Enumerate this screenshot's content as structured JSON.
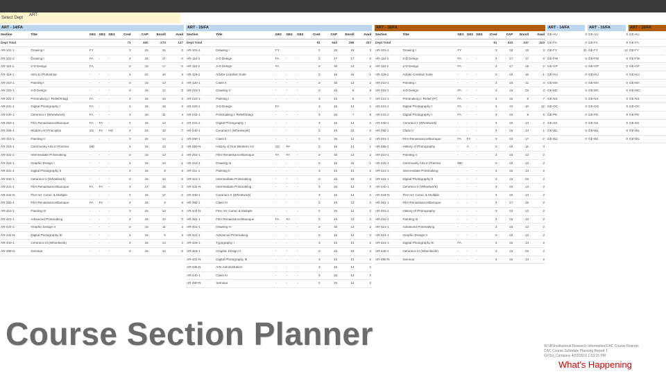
{
  "selector": {
    "label": "Select Dept",
    "value": "ART"
  },
  "columns_full": [
    "Section",
    "Title",
    "GE1",
    "GE2",
    "GE3",
    "Cred",
    "CAP",
    "Enroll",
    "Avail"
  ],
  "columns_small": [
    "",
    ""
  ],
  "panels": [
    {
      "header": "ART - 14/FA",
      "color": "#bdd7ee",
      "total": [
        "Dept Total",
        "",
        "",
        "",
        "",
        "71",
        "400",
        "273",
        "127"
      ],
      "rows": [
        [
          "AR-101-1",
          "Drawing I",
          "FY",
          "",
          "",
          "3",
          "15",
          "15",
          "0"
        ],
        [
          "AR-101-2",
          "Drawing I",
          "FA",
          "-",
          "-",
          "3",
          "15",
          "17",
          "-2"
        ],
        [
          "AR-110-1",
          "2-D Design",
          "FA",
          "",
          "",
          "3",
          "15",
          "17",
          "-2"
        ],
        [
          "AR-119-1",
          "Intro to Photoshop",
          "-",
          "-",
          "-",
          "3",
          "22",
          "16",
          "6"
        ],
        [
          "AR-210-1",
          "Painting I",
          "-",
          "-",
          "-",
          "3",
          "15",
          "13",
          "2"
        ],
        [
          "AR-220-1",
          "3-D Design",
          "-",
          "-",
          "-",
          "3",
          "15",
          "12",
          "3"
        ],
        [
          "AR-222-1",
          "Printmaking I: Relief/Intagl",
          "FA",
          "-",
          "-",
          "3",
          "15",
          "15",
          "0"
        ],
        [
          "AR-231-1",
          "Digital Photography I",
          "FA",
          "-",
          "-",
          "3",
          "15",
          "15",
          "0"
        ],
        [
          "AR-240-1",
          "Ceramics I (Wheelwork)",
          "FA",
          "-",
          "-",
          "3",
          "15",
          "11",
          "4"
        ],
        [
          "AR-250-1",
          "Film Renaissance/Baroque",
          "FA",
          "FA",
          "-",
          "3",
          "15",
          "13",
          "2"
        ],
        [
          "AR-265-1",
          "Modern Art Principles",
          "SS",
          "FA",
          "HU",
          "3",
          "22",
          "15",
          "7"
        ],
        [
          "AR-310-1",
          "Painting II",
          "-",
          "-",
          "-",
          "3",
          "15",
          "14",
          "1"
        ],
        [
          "AR-315-1",
          "Community Arts in Practice",
          "MD",
          "",
          "",
          "3",
          "15",
          "13",
          "2"
        ],
        [
          "AR-321-1",
          "Intermediate Printmaking",
          "-",
          "-",
          "-",
          "3",
          "15",
          "13",
          "2"
        ],
        [
          "AR-324-1",
          "Graphic Design I",
          "-",
          "-",
          "-",
          "3",
          "15",
          "14",
          "1"
        ],
        [
          "AR-331-1",
          "Digital Photography II",
          "-",
          "-",
          "-",
          "3",
          "15",
          "9",
          "6"
        ],
        [
          "AR-340-1",
          "Ceramics II (Wheelwork)",
          "-",
          "-",
          "-",
          "3",
          "15",
          "13",
          "2"
        ],
        [
          "AR-341-1",
          "Film Renaissance/Baroque",
          "FA",
          "FA",
          "-",
          "3",
          "17",
          "15",
          "2"
        ],
        [
          "AR-344-N",
          "Flex Art: Comic & Multiple",
          "-",
          "-",
          "-",
          "3",
          "15",
          "17",
          "-2"
        ],
        [
          "AR-360-1",
          "Film Renaissance/Baroque",
          "FA",
          "FA",
          "-",
          "3",
          "15",
          "9",
          "6"
        ],
        [
          "AR-410-1",
          "Painting III",
          "-",
          "-",
          "-",
          "3",
          "15",
          "13",
          "2"
        ],
        [
          "AR-421-1",
          "Advanced Printmaking",
          "-",
          "-",
          "-",
          "3",
          "15",
          "13",
          "2"
        ],
        [
          "AR-424-1",
          "Graphic Design II",
          "-",
          "-",
          "-",
          "3",
          "15",
          "11",
          "4"
        ],
        [
          "AR-431-N",
          "Digital Photography III",
          "-",
          "-",
          "-",
          "3",
          "15",
          "9",
          "6"
        ],
        [
          "AR-440-1",
          "Ceramics III (Wheelwork)",
          "-",
          "-",
          "-",
          "3",
          "15",
          "13",
          "2"
        ],
        [
          "AR-480-N",
          "Seminar",
          "-",
          "-",
          "-",
          "3",
          "15",
          "13",
          "2"
        ]
      ]
    },
    {
      "header": "ART - 15/FA",
      "color": "#bdd7ee",
      "total": [
        "Dept Total",
        "",
        "",
        "",
        "",
        "91",
        "540",
        "296",
        "207"
      ],
      "rows": [
        [
          "AR-101-1",
          "Drawing I",
          "FY",
          "",
          "",
          "3",
          "18",
          "15",
          "3"
        ],
        [
          "AR-110-1",
          "2-D Design",
          "FA",
          "-",
          "-",
          "3",
          "17",
          "17",
          "0"
        ],
        [
          "AR-110-2",
          "2-D Design",
          "FA",
          "",
          "",
          "3",
          "15",
          "13",
          "2"
        ],
        [
          "AR-119-1",
          "Adobe Creative Suite",
          "-",
          "-",
          "-",
          "3",
          "15",
          "16",
          "-1"
        ],
        [
          "AR-120-1",
          "Class II",
          "-",
          "-",
          "-",
          "3",
          "15",
          "13",
          "2"
        ],
        [
          "AR-210-1",
          "Drawing II",
          "-",
          "-",
          "-",
          "3",
          "15",
          "6",
          "9"
        ],
        [
          "AR-210-1",
          "Painting I",
          "-",
          "-",
          "-",
          "3",
          "15",
          "8",
          "7"
        ],
        [
          "AR-220-1",
          "3-D Design",
          "FA",
          "",
          "",
          "3",
          "15",
          "13",
          "2"
        ],
        [
          "AR-222-1",
          "Printmaking I: Relief/Intagl",
          "-",
          "-",
          "-",
          "3",
          "15",
          "7",
          "8"
        ],
        [
          "AR-231-1",
          "Digital Photography I",
          "-",
          "-",
          "-",
          "3",
          "15",
          "13",
          "2"
        ],
        [
          "AR-240-1",
          "Ceramics I (Wheelwork)",
          "-",
          "-",
          "-",
          "3",
          "15",
          "15",
          "0"
        ],
        [
          "AR-250-1",
          "Class II",
          "-",
          "-",
          "-",
          "3",
          "15",
          "13",
          "2"
        ],
        [
          "AR-250-N",
          "History of Non-Western Art",
          "SS",
          "FA",
          "",
          "3",
          "15",
          "14",
          "1"
        ],
        [
          "AR-261-1",
          "Film Renaissance/Baroque",
          "FA",
          "FA",
          "-",
          "3",
          "15",
          "13",
          "2"
        ],
        [
          "AR-310-1",
          "Drawing III",
          "-",
          "-",
          "-",
          "3",
          "15",
          "16",
          "-1"
        ],
        [
          "AR-311-1",
          "Painting II",
          "-",
          "-",
          "-",
          "3",
          "15",
          "13",
          "2"
        ],
        [
          "AR-321-1",
          "Intermediate Printmaking",
          "-",
          "-",
          "-",
          "3",
          "15",
          "13",
          "2"
        ],
        [
          "AR-331-N",
          "Intermediate Printmaking",
          "-",
          "-",
          "-",
          "3",
          "15",
          "13",
          "2"
        ],
        [
          "AR-340-1",
          "Ceramics II (Wheelwork)",
          "-",
          "-",
          "-",
          "3",
          "15",
          "13",
          "2"
        ],
        [
          "AR-350-1",
          "Class III",
          "-",
          "-",
          "-",
          "3",
          "15",
          "13",
          "2"
        ],
        [
          "AR-344-N",
          "Flex Art: Comic & Multiple",
          "-",
          "-",
          "-",
          "3",
          "15",
          "13",
          "2"
        ],
        [
          "AR-361-1",
          "Film Renaissance/Baroque",
          "FA",
          "FA",
          "-",
          "3",
          "15",
          "13",
          "2"
        ],
        [
          "AR-401-1",
          "Drawing IV",
          "-",
          "-",
          "-",
          "3",
          "15",
          "13",
          "2"
        ],
        [
          "AR-421-1",
          "Advanced Printmaking",
          "-",
          "-",
          "-",
          "3",
          "15",
          "13",
          "2"
        ],
        [
          "AR-425-1",
          "Typography I",
          "-",
          "-",
          "-",
          "3",
          "15",
          "13",
          "2"
        ],
        [
          "AR-424-1",
          "Graphic Design II",
          "-",
          "-",
          "-",
          "3",
          "15",
          "13",
          "2"
        ],
        [
          "AR-431-N",
          "Digital Photography III",
          "-",
          "-",
          "-",
          "3",
          "15",
          "13",
          "2"
        ],
        [
          "AR-435-N",
          "Arts Administration",
          "-",
          "-",
          "-",
          "3",
          "15",
          "13",
          "2"
        ],
        [
          "AR-440-1",
          "Class IV",
          "-",
          "-",
          "-",
          "3",
          "15",
          "13",
          "2"
        ],
        [
          "AR-480-N",
          "Seminar",
          "-",
          "-",
          "-",
          "3",
          "15",
          "13",
          "2"
        ]
      ]
    },
    {
      "header": "ART - 16/FA",
      "color": "#b25c0c",
      "total": [
        "Dept Total",
        "",
        "",
        "",
        "",
        "91",
        "510",
        "247",
        "223"
      ],
      "rows": [
        [
          "AR-101-1",
          "Drawing I",
          "FY",
          "",
          "",
          "3",
          "18",
          "15",
          "3"
        ],
        [
          "AR-110-1",
          "2-D Design",
          "FA",
          "-",
          "-",
          "3",
          "17",
          "17",
          "0"
        ],
        [
          "AR-110-2",
          "2-D Design",
          "FA",
          "",
          "",
          "3",
          "17",
          "15",
          "2"
        ],
        [
          "AR-119-1",
          "Adobe Creative Suite",
          "-",
          "-",
          "-",
          "3",
          "15",
          "16",
          "-1"
        ],
        [
          "AR-210-1",
          "Painting I",
          "-",
          "-",
          "-",
          "3",
          "15",
          "11",
          "4"
        ],
        [
          "AR-220-1",
          "3-D Design",
          "FA",
          "-",
          "-",
          "3",
          "15",
          "13",
          "2"
        ],
        [
          "AR-221-1",
          "Printmaking I: Relief (Pr)",
          "FA",
          "-",
          "-",
          "3",
          "15",
          "8",
          "7"
        ],
        [
          "AR-231-1",
          "Digital Photography I",
          "FA",
          "-",
          "-",
          "3",
          "22",
          "10",
          "12"
        ],
        [
          "AR-231-2",
          "Digital Photography I",
          "FA",
          "-",
          "-",
          "3",
          "15",
          "9",
          "6"
        ],
        [
          "AR-240-1",
          "Ceramics I (Wheelwork)",
          "-",
          "-",
          "-",
          "3",
          "15",
          "13",
          "2"
        ],
        [
          "AR-250-1",
          "Class II",
          "-",
          "-",
          "-",
          "3",
          "15",
          "14",
          "1"
        ],
        [
          "AR-251-1",
          "Film Renaissance/Baroque",
          "FA",
          "FA",
          "-",
          "3",
          "15",
          "17",
          "-2"
        ],
        [
          "AR-255-1",
          "History of Photography",
          "-",
          "A",
          "-",
          "3",
          "15",
          "11",
          "4"
        ],
        [
          "AR-310-1",
          "Painting II",
          "-",
          "-",
          "-",
          "3",
          "15",
          "13",
          "2"
        ],
        [
          "AR-315-1",
          "Community Arts in Practice",
          "MD",
          "",
          "",
          "3",
          "15",
          "13",
          "2"
        ],
        [
          "AR-321-1",
          "Intermediate Printmaking",
          "-",
          "-",
          "-",
          "3",
          "15",
          "13",
          "2"
        ],
        [
          "AR-331-1",
          "Digital Photography II",
          "-",
          "-",
          "-",
          "3",
          "15",
          "13",
          "2"
        ],
        [
          "AR-340-1",
          "Ceramics II (Wheelwork)",
          "-",
          "-",
          "-",
          "3",
          "15",
          "13",
          "2"
        ],
        [
          "AR-344-N",
          "Flex Art: Comic & Multiple",
          "-",
          "-",
          "-",
          "3",
          "15",
          "13",
          "2"
        ],
        [
          "AR-361-1",
          "Film Renaissance/Baroque",
          "-",
          "-",
          "-",
          "3",
          "17",
          "15",
          "2"
        ],
        [
          "AR-401-1",
          "History of Photography",
          "-",
          "-",
          "-",
          "3",
          "15",
          "13",
          "2"
        ],
        [
          "AR-410-1",
          "Painting III",
          "-",
          "-",
          "-",
          "3",
          "15",
          "13",
          "2"
        ],
        [
          "AR-421-1",
          "Advanced Printmaking",
          "-",
          "-",
          "-",
          "3",
          "15",
          "13",
          "2"
        ],
        [
          "AR-424-1",
          "Graphic Design II",
          "-",
          "-",
          "-",
          "3",
          "15",
          "13",
          "2"
        ],
        [
          "AR-431-1",
          "Digital Photography III",
          "FA",
          "",
          "",
          "3",
          "15",
          "13",
          "2"
        ],
        [
          "AR-440-1",
          "Ceramics III (Wheelwork)",
          "-",
          "-",
          "-",
          "3",
          "15",
          "13",
          "2"
        ],
        [
          "AR-480-N",
          "Seminar",
          "-",
          "-",
          "-",
          "3",
          "15",
          "13",
          "2"
        ]
      ]
    }
  ],
  "small_panels": [
    {
      "header": "ART - 14/FA",
      "color": "#bdd7ee",
      "rows": [
        [
          "GE-AU",
          "0"
        ],
        [
          "GE-FA",
          "0"
        ],
        [
          "GE-FY",
          "31"
        ],
        [
          "GE-FW",
          "0"
        ],
        [
          "GE-GP",
          "0"
        ],
        [
          "GE-HU",
          "0"
        ],
        [
          "GE-MA",
          "0"
        ],
        [
          "GE-MC",
          "0"
        ],
        [
          "GE-NS",
          "0"
        ],
        [
          "GE-OC",
          "0"
        ],
        [
          "GE-PE",
          "0"
        ],
        [
          "GE-SS",
          "0"
        ],
        [
          "GE-WL",
          "0"
        ],
        [
          "GE-WL",
          "0"
        ]
      ]
    },
    {
      "header": "ART - 15/FA",
      "color": "#bdd7ee",
      "rows": [
        [
          "GE-AU",
          "0"
        ],
        [
          "GE-FA",
          "0"
        ],
        [
          "GE-FY",
          "12"
        ],
        [
          "GE-FW",
          "0"
        ],
        [
          "GE-GP",
          "0"
        ],
        [
          "GE-HU",
          "0"
        ],
        [
          "GE-MA",
          "0"
        ],
        [
          "GE-MC",
          "0"
        ],
        [
          "GE-NS",
          "0"
        ],
        [
          "GE-OC",
          "0"
        ],
        [
          "GE-PE",
          "0"
        ],
        [
          "GE-SS",
          "0"
        ],
        [
          "GE-WL",
          "0"
        ],
        [
          "GE-WL",
          "0"
        ]
      ]
    },
    {
      "header": "ART - 16/FA",
      "color": "#b25c0c",
      "rows": [
        [
          "GE-AU",
          "1"
        ],
        [
          "GE-FA",
          "0"
        ],
        [
          "GE-FY",
          "11"
        ],
        [
          "GE-FW",
          "0"
        ],
        [
          "GE-GP",
          "0"
        ],
        [
          "GE-HU",
          "0"
        ],
        [
          "GE-MA",
          "0"
        ],
        [
          "GE-MC",
          "0"
        ],
        [
          "GE-NS",
          "0"
        ],
        [
          "GE-OC",
          "0"
        ],
        [
          "GE-PE",
          "0"
        ],
        [
          "GE-SS",
          "0"
        ],
        [
          "GE-WL",
          "0"
        ],
        [
          "GE-WL",
          "0"
        ]
      ]
    }
  ],
  "big_title": "Course Section Planner",
  "info_lines": [
    "W:\\IR\\Institutional Research Information\\CAC Course Reports",
    "CAC Course Schedule Planning Report 1",
    "GVSU_Company 4/20/2016 1:53:15 PM"
  ],
  "whats_happening": "What's Happening"
}
